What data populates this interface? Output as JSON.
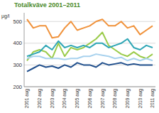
{
  "chart_data": {
    "type": "line",
    "title": "Totalkväve 2001–2011",
    "y_label": "µg/l",
    "categories": [
      "2001 aug",
      null,
      "2002 aug",
      null,
      "2003 aug",
      null,
      "2004 aug",
      null,
      "2005 aug",
      null,
      "2006 aug",
      null,
      "2007 aug",
      null,
      "2008 aug",
      null,
      "2009 aug",
      null,
      "2010 aug",
      null,
      "2011 aug"
    ],
    "series": [
      {
        "color": "#f0923b",
        "values": [
          510,
          470,
          480,
          480,
          425,
          430,
          470,
          500,
          460,
          470,
          480,
          500,
          510,
          480,
          480,
          500,
          470,
          480,
          440,
          460,
          480
        ]
      },
      {
        "color": "#9acb4a",
        "values": [
          320,
          360,
          370,
          360,
          330,
          400,
          340,
          380,
          370,
          380,
          400,
          420,
          450,
          390,
          370,
          350,
          340,
          360,
          340,
          330,
          350
        ]
      },
      {
        "color": "#2ea6b5",
        "values": [
          340,
          350,
          360,
          390,
          370,
          410,
          380,
          390,
          380,
          390,
          380,
          400,
          400,
          380,
          390,
          400,
          420,
          380,
          370,
          390,
          380
        ]
      },
      {
        "color": "#a8d2ee",
        "values": [
          330,
          340,
          340,
          330,
          330,
          330,
          325,
          330,
          330,
          340,
          340,
          350,
          345,
          340,
          330,
          335,
          320,
          330,
          320,
          330,
          320
        ]
      },
      {
        "color": "#1f4e8c",
        "values": [
          270,
          285,
          300,
          290,
          295,
          285,
          300,
          290,
          310,
          300,
          300,
          290,
          310,
          300,
          305,
          310,
          300,
          305,
          300,
          300,
          300
        ]
      }
    ],
    "ylim": [
      200,
      540
    ],
    "yticks": [
      200,
      300,
      400,
      500
    ],
    "grid": true
  }
}
